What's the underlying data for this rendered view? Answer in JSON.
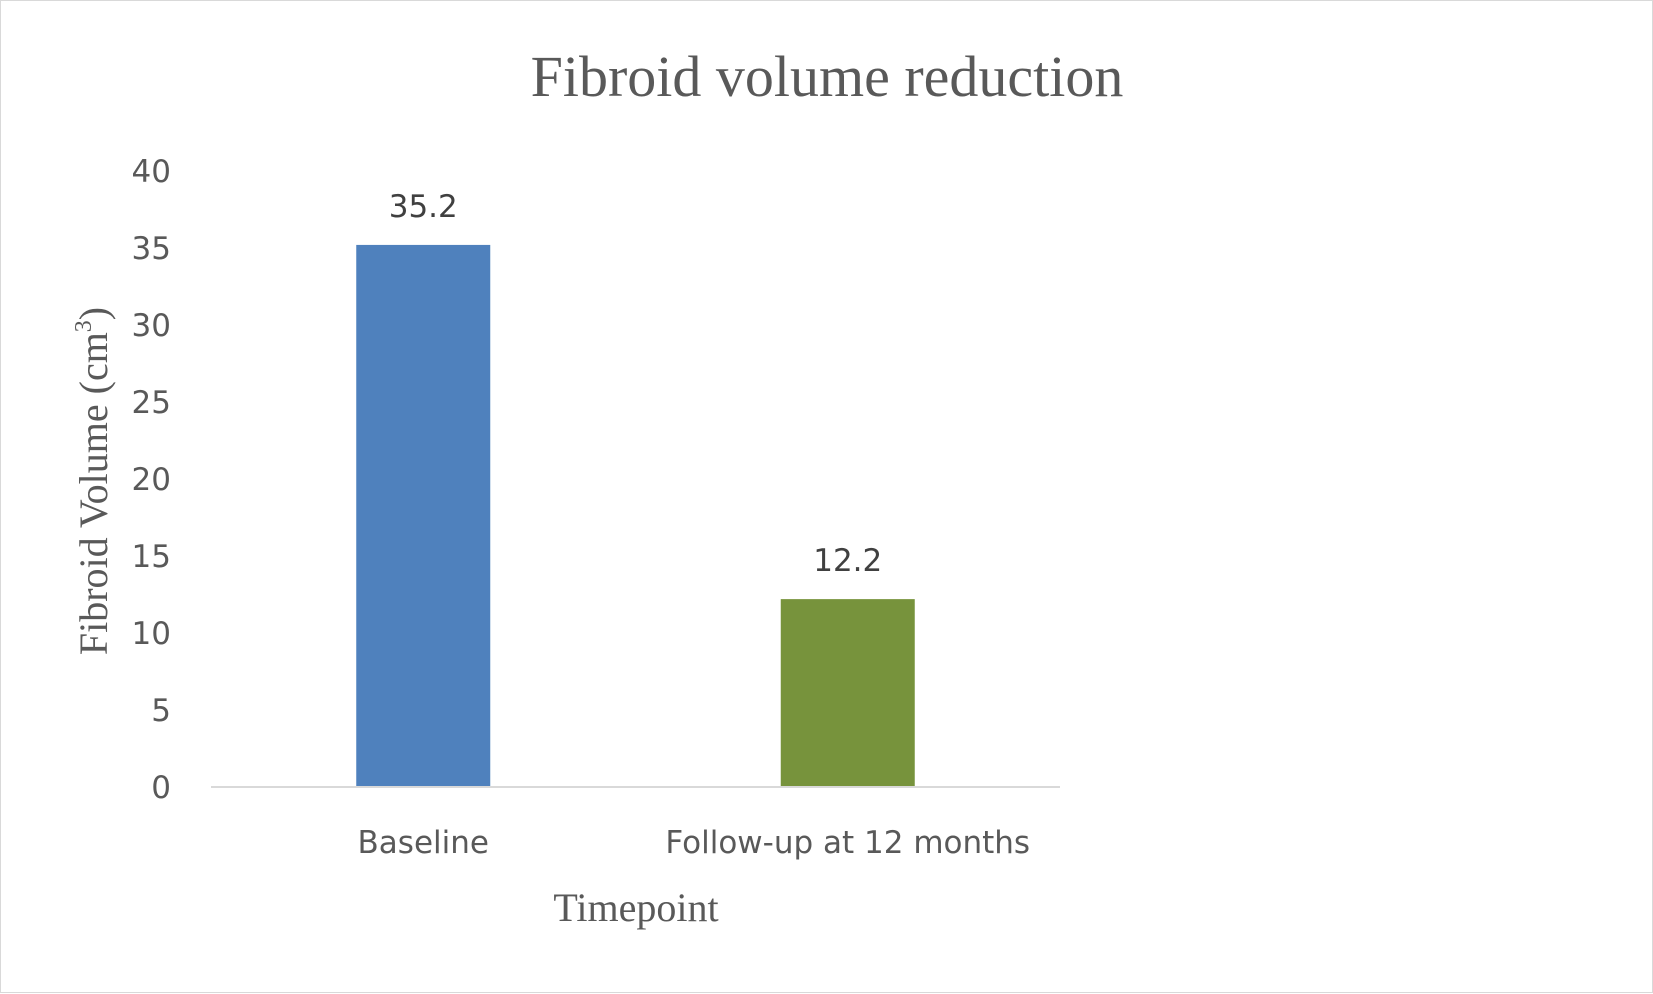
{
  "chart_data": {
    "type": "bar",
    "title": "Fibroid volume reduction",
    "xlabel": "Timepoint",
    "ylabel_main": "Fibroid Volume (cm",
    "ylabel_sup": "3",
    "ylabel_close": ")",
    "categories": [
      "Baseline",
      "Follow-up at 12 months"
    ],
    "values": [
      35.2,
      12.2
    ],
    "data_labels": [
      "35.2",
      "12.2"
    ],
    "colors": [
      "#4f81bd",
      "#77933c"
    ],
    "ylim": [
      0,
      40
    ],
    "yticks": [
      0,
      5,
      10,
      15,
      20,
      25,
      30,
      35,
      40
    ],
    "ytick_labels": [
      "0",
      "5",
      "10",
      "15",
      "20",
      "25",
      "30",
      "35",
      "40"
    ],
    "grid": false,
    "legend": "none",
    "axis_color": "#d9d9d9"
  }
}
